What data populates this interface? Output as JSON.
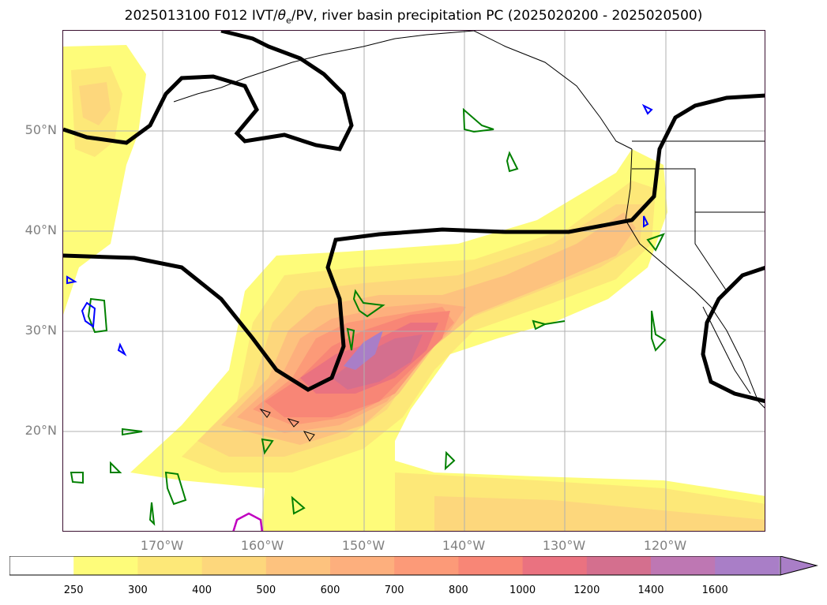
{
  "title": {
    "prefix": "2025013100 F012 IVT/",
    "theta": "θ",
    "theta_sub": "e",
    "suffix": "/PV, river basin precipitation PC (2025020200 - 2025020500)"
  },
  "map": {
    "lat_labels": [
      "50°N",
      "40°N",
      "30°N",
      "20°N"
    ],
    "lon_labels": [
      "170°W",
      "160°W",
      "150°W",
      "140°W",
      "130°W",
      "120°W"
    ],
    "gridlines": true
  },
  "colorbar": {
    "levels": [
      "250",
      "300",
      "400",
      "500",
      "600",
      "700",
      "800",
      "1000",
      "1200",
      "1400",
      "1600"
    ],
    "colors": [
      "#ffffff",
      "#fefc7a",
      "#fde878",
      "#fdd77c",
      "#fdc27e",
      "#fdaf7d",
      "#fc9a78",
      "#f88676",
      "#ea7280",
      "#d46f8e",
      "#be77b3",
      "#a97ec7"
    ],
    "extend": "max"
  },
  "colors": {
    "contour_black": "#000000",
    "contour_green": "#008000",
    "contour_blue": "#0000ff",
    "contour_magenta": "#c000c0"
  }
}
